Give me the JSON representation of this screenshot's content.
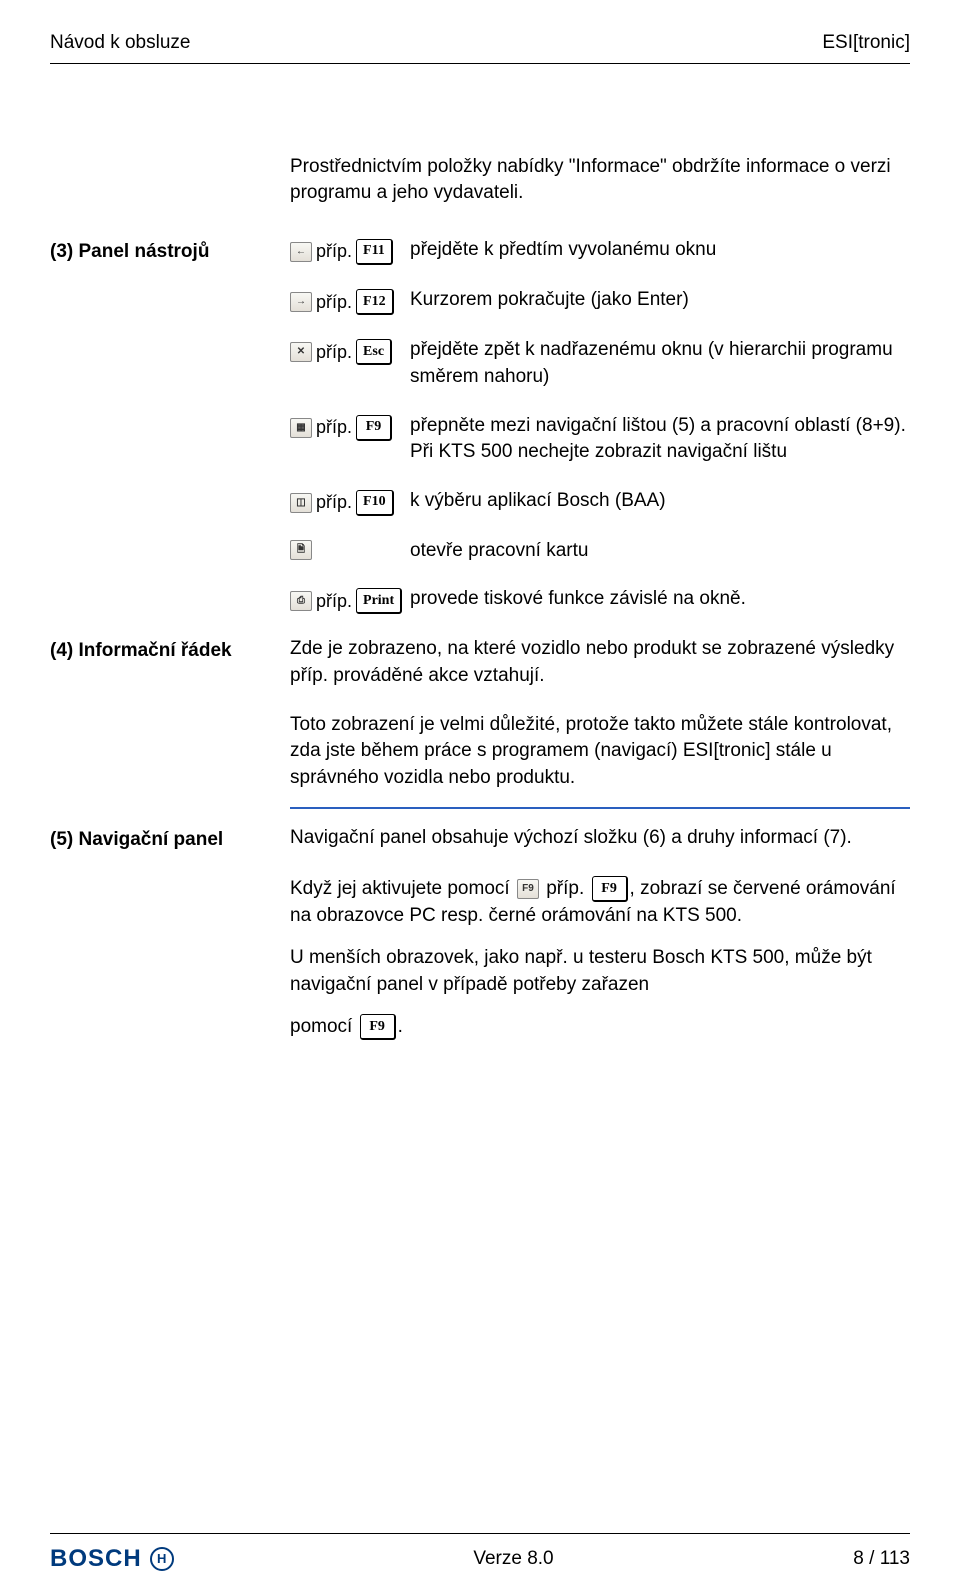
{
  "header": {
    "left": "Návod k obsluze",
    "right": "ESI[tronic]"
  },
  "intro": "Prostřednictvím položky nabídky \"Informace\" obdržíte informace o verzi programu a jeho vydavateli.",
  "toolbar": {
    "label": "(3) Panel nástrojů",
    "sep": "příp.",
    "items": [
      {
        "key": "F11",
        "small": "F11",
        "glyph": "←",
        "desc": "přejděte k předtím vyvolanému oknu"
      },
      {
        "key": "F12",
        "small": "F12",
        "glyph": "→",
        "desc": "Kurzorem pokračujte (jako Enter)"
      },
      {
        "key": "Esc",
        "small": "ESC",
        "glyph": "✕",
        "desc": "přejděte zpět k nadřazenému oknu (v hierarchii programu směrem nahoru)"
      },
      {
        "key": "F9",
        "small": "F9",
        "glyph": "▦",
        "desc": "přepněte mezi navigační lištou (5) a pracovní oblastí (8+9). Při KTS 500 nechejte zobrazit navigační lištu"
      },
      {
        "key": "F10",
        "small": "F10",
        "glyph": "◫",
        "desc": "k výběru aplikací Bosch (BAA)"
      },
      {
        "key": "",
        "small": "",
        "glyph": "🗎",
        "desc": "otevře pracovní kartu",
        "single": true
      },
      {
        "key": "Print",
        "small": "Print",
        "glyph": "⎙",
        "desc": "provede tiskové funkce závislé na okně."
      }
    ]
  },
  "inforow": {
    "label": "(4) Informační řádek",
    "p1": "Zde je zobrazeno, na které vozidlo nebo produkt se zobrazené výsledky příp. prováděné akce vztahují.",
    "p2": "Toto zobrazení je velmi důležité, protože takto můžete stále kontrolovat, zda jste během práce s programem (navigací) ESI[tronic] stále u správného vozidla nebo produktu."
  },
  "navpanel": {
    "label": "(5) Navigační panel",
    "p1": "Navigační panel obsahuje výchozí složku (6) a druhy informací (7).",
    "p2a": "Když jej aktivujete pomocí",
    "p2b": "příp.",
    "p2c": ", zobrazí se červené orámování na obrazovce PC resp. černé orámování na KTS 500.",
    "p3": "U menších obrazovek, jako např. u testeru Bosch KTS 500, může být navigační panel v případě potřeby zařazen",
    "p4a": "pomocí",
    "p4b": ".",
    "inlinekey1": "F9",
    "inlinekey2": "F9",
    "inlineglyph": "▦",
    "inlinesmall": "F9"
  },
  "footer": {
    "brand": "BOSCH",
    "center": "Verze 8.0",
    "right": "8 / 113"
  },
  "colors": {
    "blue_rule": "#2a5fbf",
    "brand_blue": "#003a7d",
    "text": "#000000",
    "bg": "#ffffff"
  }
}
